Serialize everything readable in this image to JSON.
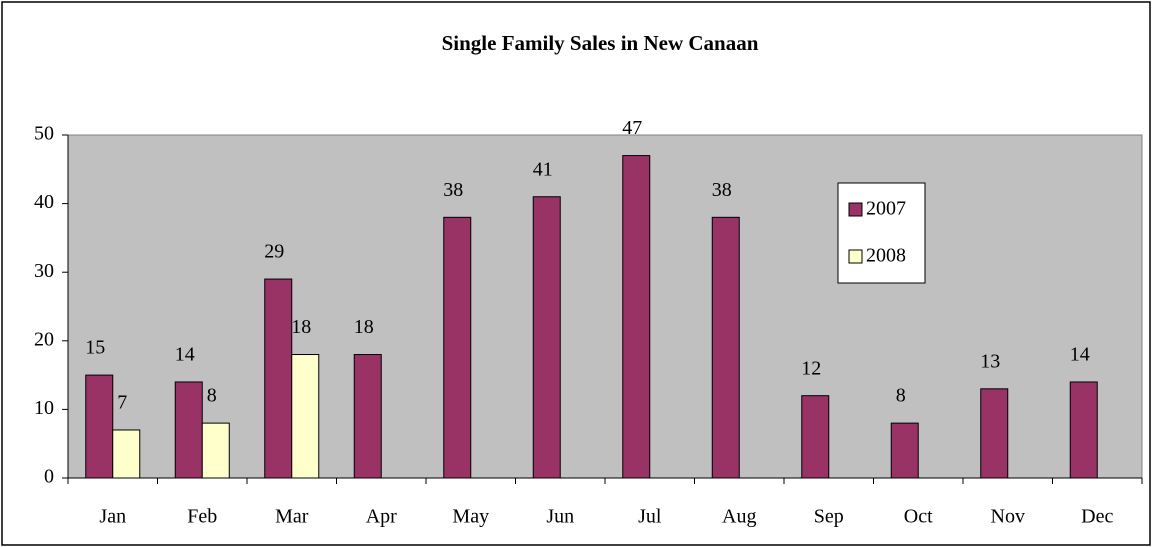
{
  "chart_data": {
    "type": "bar",
    "title": "Single Family Sales in New Canaan",
    "categories": [
      "Jan",
      "Feb",
      "Mar",
      "Apr",
      "May",
      "Jun",
      "Jul",
      "Aug",
      "Sep",
      "Oct",
      "Nov",
      "Dec"
    ],
    "series": [
      {
        "name": "2007",
        "color": "#993366",
        "values": [
          15,
          14,
          29,
          18,
          38,
          41,
          47,
          38,
          12,
          8,
          13,
          14
        ]
      },
      {
        "name": "2008",
        "color": "#ffffcc",
        "values": [
          7,
          8,
          18,
          null,
          null,
          null,
          null,
          null,
          null,
          null,
          null,
          null
        ]
      }
    ],
    "ylim": [
      0,
      50
    ],
    "yticks": [
      0,
      10,
      20,
      30,
      40,
      50
    ],
    "legend": "right",
    "plot_background": "#c0c0c0"
  }
}
